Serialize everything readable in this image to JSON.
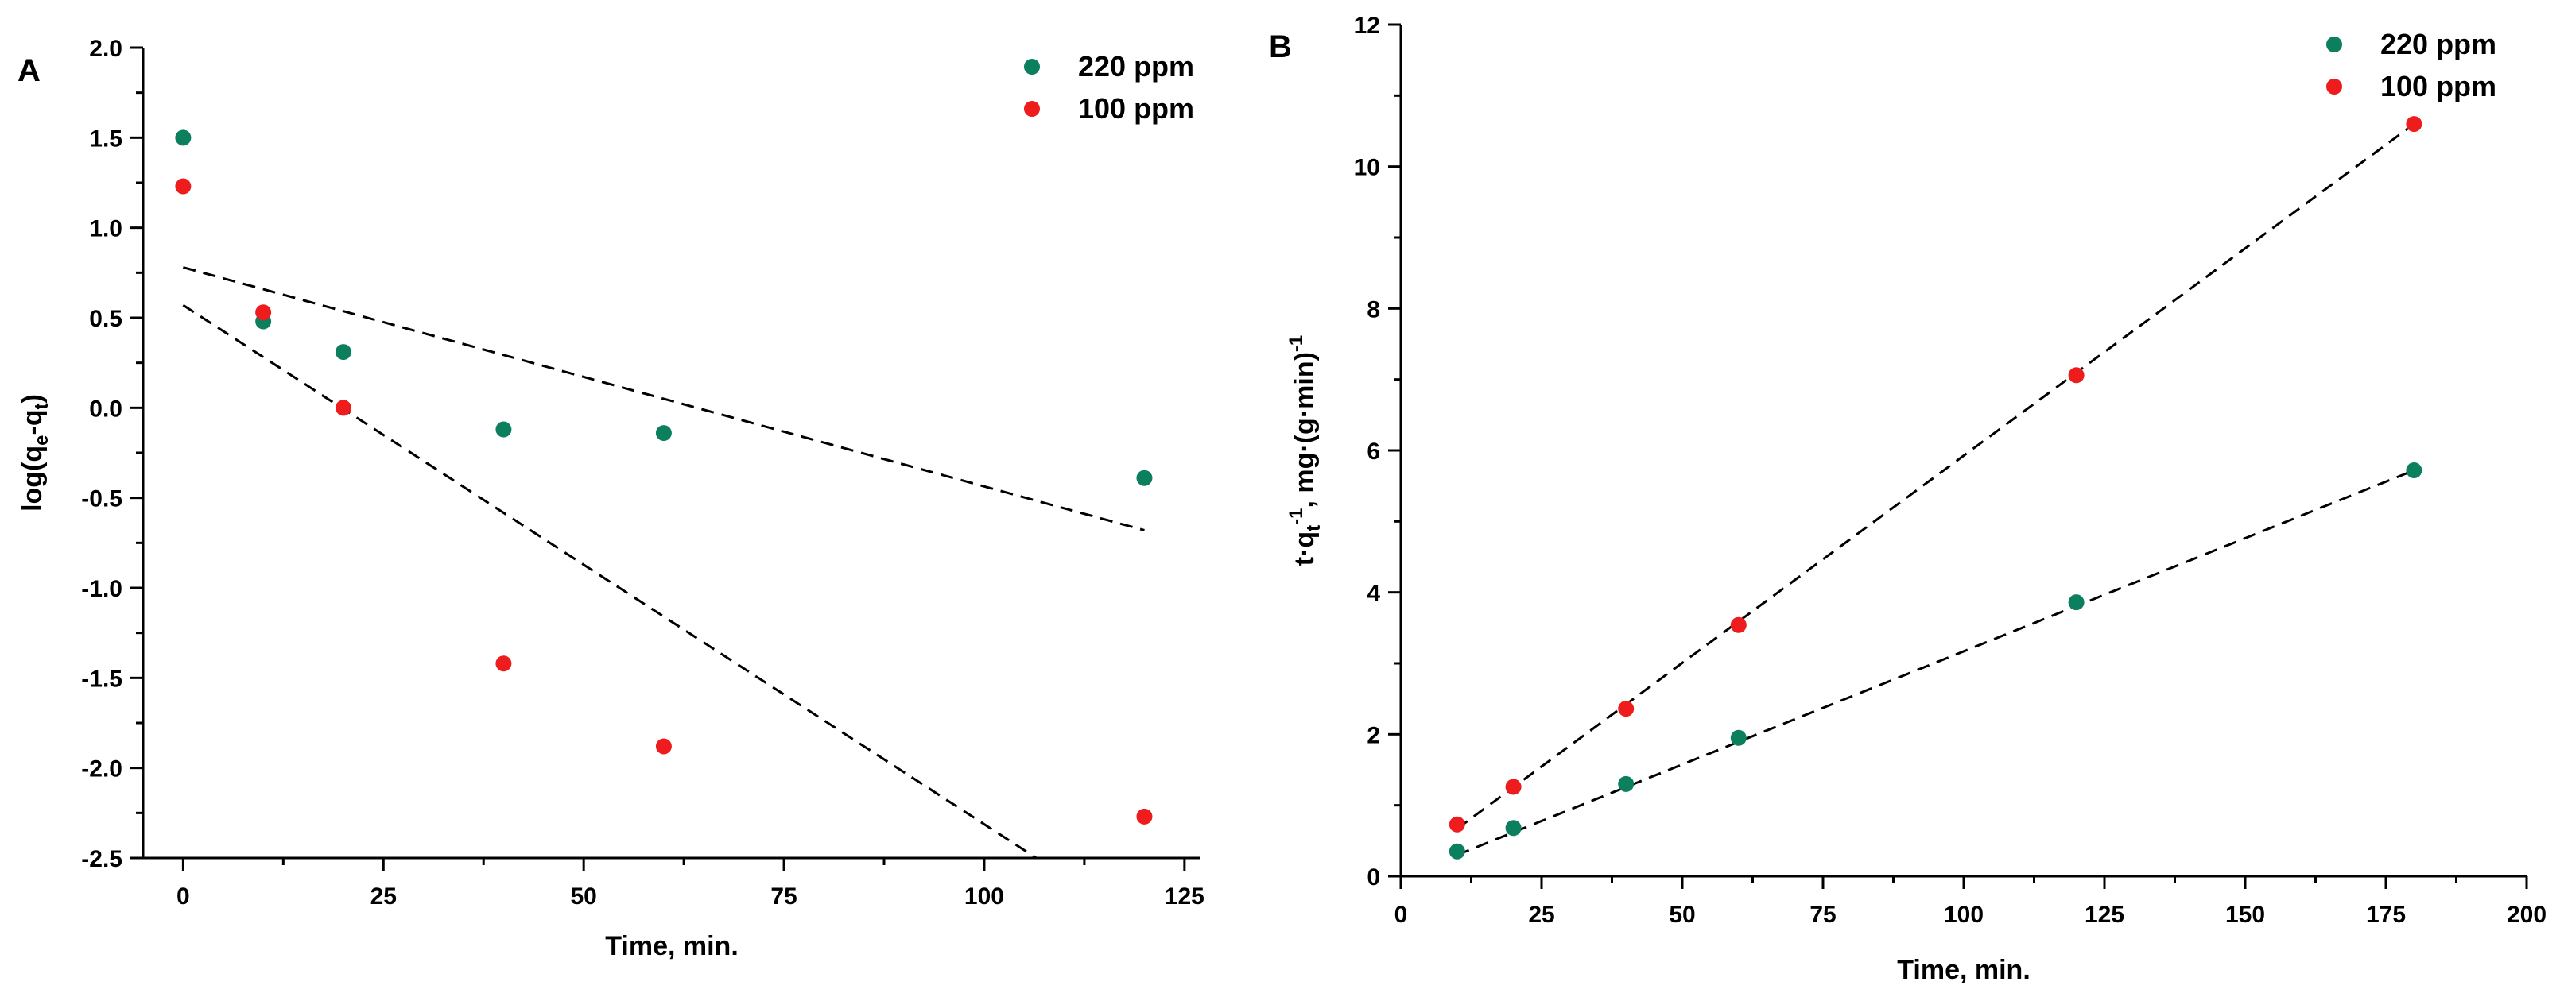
{
  "chart_data": [
    {
      "panel": "A",
      "type": "scatter",
      "xlabel": "Time, min.",
      "ylabel_parts": [
        "log(q",
        "e",
        "-q",
        "t",
        ")"
      ],
      "xlim": [
        -5,
        127
      ],
      "ylim": [
        -2.5,
        2.0
      ],
      "xticks": [
        0,
        25,
        50,
        75,
        100,
        125
      ],
      "xtick_labels": [
        "0",
        "25",
        "50",
        "75",
        "100",
        "125"
      ],
      "yticks": [
        -2.5,
        -2.0,
        -1.5,
        -1.0,
        -0.5,
        0.0,
        0.5,
        1.0,
        1.5,
        2.0
      ],
      "ytick_labels": [
        "-2.5",
        "-2.0",
        "-1.5",
        "-1.0",
        "-0.5",
        "0.0",
        "0.5",
        "1.0",
        "1.5",
        "2.0"
      ],
      "legend_position": "top-right",
      "series": [
        {
          "name": "220 ppm",
          "color": "#0b7f5e",
          "x": [
            0,
            10,
            20,
            40,
            60,
            120
          ],
          "y": [
            1.5,
            0.48,
            0.31,
            -0.12,
            -0.14,
            -0.39
          ]
        },
        {
          "name": "100 ppm",
          "color": "#ee1c1c",
          "x": [
            0,
            10,
            20,
            40,
            60,
            120
          ],
          "y": [
            1.23,
            0.53,
            0.0,
            -1.42,
            -1.88,
            -2.27
          ]
        }
      ],
      "fit_lines": [
        {
          "x": [
            0,
            120
          ],
          "y": [
            0.78,
            -0.68
          ]
        },
        {
          "x": [
            0,
            106.5
          ],
          "y": [
            0.57,
            -2.5
          ]
        }
      ]
    },
    {
      "panel": "B",
      "type": "scatter",
      "xlabel": "Time, min.",
      "ylabel_parts": [
        "t",
        "·",
        "q",
        "t",
        "-1",
        ", mg",
        "·",
        "(g",
        "·",
        "min)",
        "-1"
      ],
      "xlim": [
        0,
        200
      ],
      "ylim": [
        0,
        12
      ],
      "xticks": [
        0,
        25,
        50,
        75,
        100,
        125,
        150,
        175,
        200
      ],
      "xtick_labels": [
        "0",
        "25",
        "50",
        "75",
        "100",
        "125",
        "150",
        "175",
        "200"
      ],
      "yticks": [
        0,
        2,
        4,
        6,
        8,
        10,
        12
      ],
      "ytick_labels": [
        "0",
        "2",
        "4",
        "6",
        "8",
        "10",
        "12"
      ],
      "legend_position": "top-right",
      "series": [
        {
          "name": "220 ppm",
          "color": "#0b7f5e",
          "x": [
            10,
            20,
            40,
            60,
            120,
            180
          ],
          "y": [
            0.35,
            0.68,
            1.3,
            1.95,
            3.86,
            5.72
          ]
        },
        {
          "name": "100 ppm",
          "color": "#ee1c1c",
          "x": [
            10,
            20,
            40,
            60,
            120,
            180
          ],
          "y": [
            0.73,
            1.26,
            2.36,
            3.54,
            7.06,
            10.6
          ]
        }
      ],
      "fit_lines": [
        {
          "x": [
            10,
            180
          ],
          "y": [
            0.3,
            5.72
          ]
        },
        {
          "x": [
            10,
            180
          ],
          "y": [
            0.67,
            10.6
          ]
        }
      ]
    }
  ]
}
